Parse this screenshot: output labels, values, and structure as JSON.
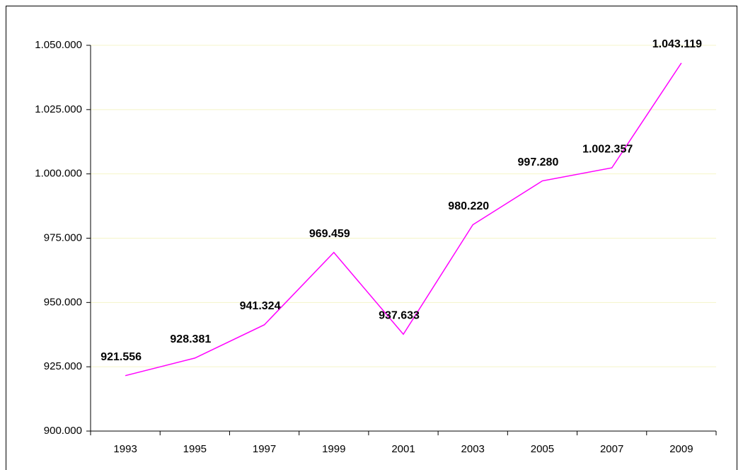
{
  "chart_data": {
    "type": "line",
    "categories": [
      "1993",
      "1995",
      "1997",
      "1999",
      "2001",
      "2003",
      "2005",
      "2007",
      "2009"
    ],
    "series": [
      {
        "color": "#ff00ff",
        "values": [
          921556,
          928381,
          941324,
          969459,
          937633,
          980220,
          997280,
          1002357,
          1043119
        ],
        "value_labels": [
          "921.556",
          "928.381",
          "941.324",
          "969.459",
          "937.633",
          "980.220",
          "997.280",
          "1.002.357",
          "1.043.119"
        ]
      }
    ],
    "ylim": [
      900000,
      1050000
    ],
    "yticks": [
      {
        "value": 900000,
        "label": "900.000"
      },
      {
        "value": 925000,
        "label": "925.000"
      },
      {
        "value": 950000,
        "label": "950.000"
      },
      {
        "value": 975000,
        "label": "975.000"
      },
      {
        "value": 1000000,
        "label": "1.000.000"
      },
      {
        "value": 1025000,
        "label": "1.025.000"
      },
      {
        "value": 1050000,
        "label": "1.050.000"
      }
    ],
    "grid": true
  }
}
